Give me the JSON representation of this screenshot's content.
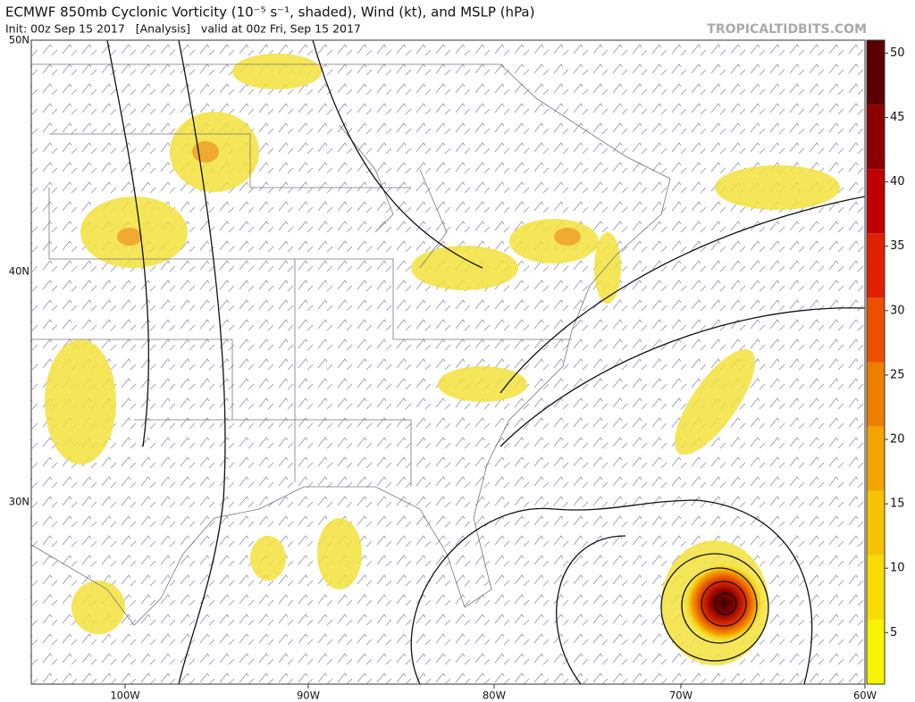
{
  "header": {
    "title": "ECMWF 850mb Cyclonic Vorticity (10⁻⁵ s⁻¹, shaded), Wind (kt), and MSLP (hPa)",
    "init": "Init: 00z Sep 15 2017   [Analysis]   valid at 00z Fri, Sep 15 2017",
    "source": "TROPICALTIDBITS.COM"
  },
  "map": {
    "lat_labels": [
      "50N",
      "40N",
      "30N"
    ],
    "lon_labels": [
      "100W",
      "90W",
      "80W",
      "70W",
      "60W"
    ]
  },
  "colorbar": {
    "range": [
      1,
      51
    ],
    "ticks": [
      5,
      10,
      15,
      20,
      25,
      30,
      35,
      40,
      45,
      50
    ],
    "colors": [
      "#f8f400",
      "#f6dc00",
      "#f4c400",
      "#f2a400",
      "#ee7e00",
      "#ea5000",
      "#e02000",
      "#c00000",
      "#8c0000",
      "#5a0000"
    ]
  }
}
